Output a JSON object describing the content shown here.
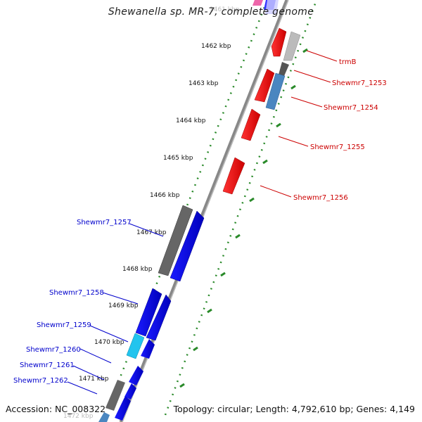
{
  "title": "Shewanella sp. MR-7, complete genome",
  "accession": "Accession: NC_008322",
  "summary": "Topology: circular; Length: 4,792,610 bp; Genes: 4,149",
  "ticks": [
    {
      "label": "1461 kbp",
      "faded": true
    },
    {
      "label": "1462 kbp"
    },
    {
      "label": "1463 kbp"
    },
    {
      "label": "1464 kbp"
    },
    {
      "label": "1465 kbp"
    },
    {
      "label": "1466 kbp"
    },
    {
      "label": "1467 kbp"
    },
    {
      "label": "1468 kbp"
    },
    {
      "label": "1469 kbp"
    },
    {
      "label": "1470 kbp"
    },
    {
      "label": "1471 kbp"
    },
    {
      "label": "1472 kbp",
      "faded": true
    }
  ],
  "gene_labels_forward": [
    "trmB",
    "Shewmr7_1253",
    "Shewmr7_1254",
    "Shewmr7_1255",
    "Shewmr7_1256"
  ],
  "gene_labels_reverse": [
    "Shewmr7_1257",
    "Shewmr7_1258",
    "Shewmr7_1259",
    "Shewmr7_1260",
    "Shewmr7_1261",
    "Shewmr7_1262"
  ],
  "colors": {
    "forward_gene": "#ee0000",
    "reverse_gene": "#0000ee",
    "grey_gene": "#666666",
    "light_grey_gene": "#bbbbbb",
    "steel_gene": "#4a86c0",
    "cyan_gene": "#22c4ee",
    "backbone": "#888888",
    "ticks": "#2a8a2a"
  }
}
